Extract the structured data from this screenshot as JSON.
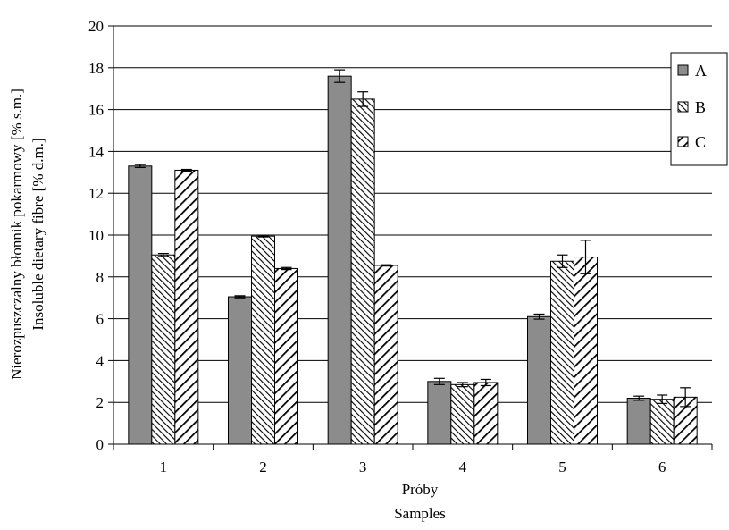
{
  "chart_data": {
    "type": "bar",
    "categories": [
      "1",
      "2",
      "3",
      "4",
      "5",
      "6"
    ],
    "series": [
      {
        "name": "A",
        "values": [
          13.3,
          7.05,
          17.6,
          3.0,
          6.1,
          2.2
        ],
        "errors": [
          0.07,
          0.05,
          0.3,
          0.15,
          0.12,
          0.1
        ]
      },
      {
        "name": "B",
        "values": [
          9.05,
          9.95,
          16.5,
          2.85,
          8.75,
          2.15
        ],
        "errors": [
          0.07,
          0.04,
          0.35,
          0.1,
          0.3,
          0.2
        ]
      },
      {
        "name": "C",
        "values": [
          13.1,
          8.4,
          8.55,
          2.95,
          8.95,
          2.25
        ],
        "errors": [
          0.04,
          0.05,
          0.03,
          0.15,
          0.8,
          0.45
        ]
      }
    ],
    "xlabel": [
      "Próby",
      "Samples"
    ],
    "ylabel": [
      "Nierozpuszczalny błonnik pokarmowy [% s.m.]",
      "Insoluble dietary fibre [% d.m.]"
    ],
    "ylim": [
      0,
      20
    ],
    "yticks": [
      "0",
      "2",
      "4",
      "6",
      "8",
      "10",
      "12",
      "14",
      "16",
      "18",
      "20"
    ],
    "grid": true,
    "legend": "right"
  },
  "colors": {
    "A": "#8c8c8c",
    "B_stripe": "#000000",
    "C_stripe": "#000000",
    "grid": "#000000",
    "background": "#ffffff"
  }
}
